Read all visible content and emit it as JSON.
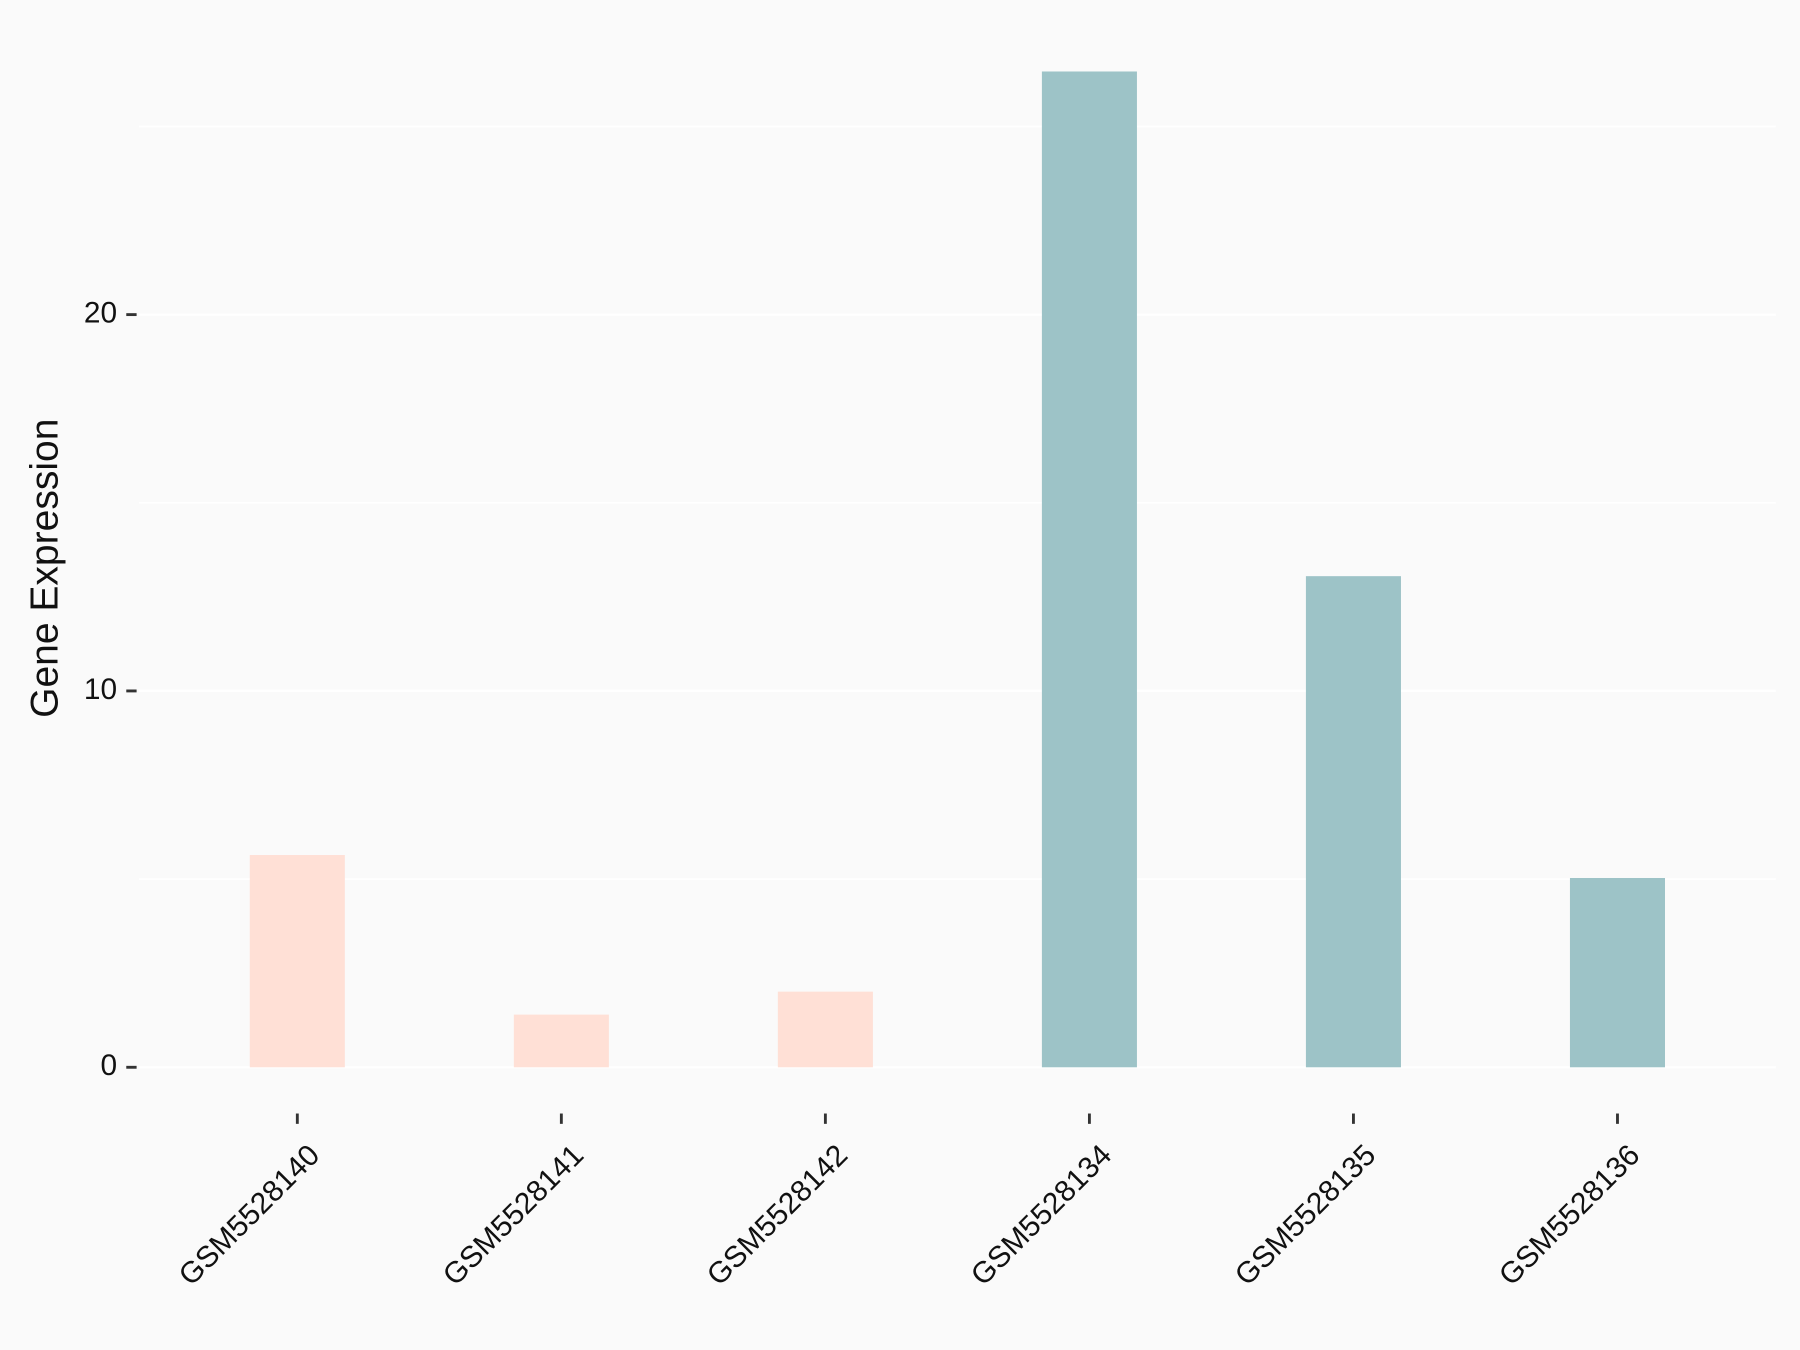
{
  "chart_data": {
    "type": "bar",
    "y_label": "Gene Expression",
    "categories": [
      "GSM5528140",
      "GSM5528141",
      "GSM5528142",
      "GSM5528134",
      "GSM5528135",
      "GSM5528136"
    ],
    "values": [
      5.64,
      1.4,
      2.01,
      26.46,
      13.05,
      5.03
    ],
    "colors": [
      "#ffe0d6",
      "#ffe0d6",
      "#ffe0d6",
      "#9dc3c7",
      "#9dc3c7",
      "#9dc3c7"
    ],
    "ylim": [
      -1.32,
      27.78
    ],
    "yticks": [
      0,
      10,
      20
    ],
    "minor_yticks": [
      5,
      15,
      25
    ],
    "grid": true
  }
}
